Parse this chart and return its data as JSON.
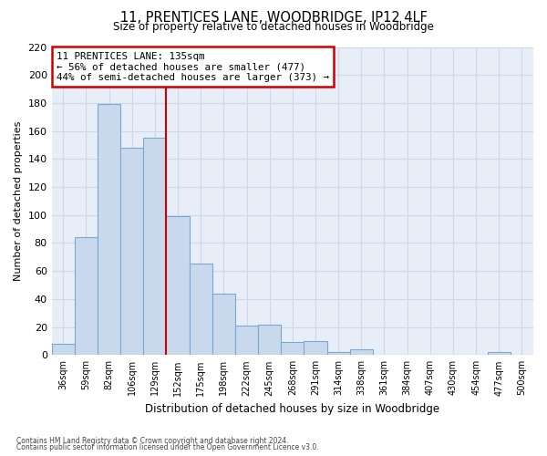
{
  "title": "11, PRENTICES LANE, WOODBRIDGE, IP12 4LF",
  "subtitle": "Size of property relative to detached houses in Woodbridge",
  "xlabel": "Distribution of detached houses by size in Woodbridge",
  "ylabel": "Number of detached properties",
  "footnote1": "Contains HM Land Registry data © Crown copyright and database right 2024.",
  "footnote2": "Contains public sector information licensed under the Open Government Licence v3.0.",
  "categories": [
    "36sqm",
    "59sqm",
    "82sqm",
    "106sqm",
    "129sqm",
    "152sqm",
    "175sqm",
    "198sqm",
    "222sqm",
    "245sqm",
    "268sqm",
    "291sqm",
    "314sqm",
    "338sqm",
    "361sqm",
    "384sqm",
    "407sqm",
    "430sqm",
    "454sqm",
    "477sqm",
    "500sqm"
  ],
  "values": [
    8,
    84,
    179,
    148,
    155,
    99,
    65,
    44,
    21,
    22,
    9,
    10,
    2,
    4,
    0,
    0,
    0,
    0,
    0,
    2,
    0
  ],
  "bar_color": "#c8d9ee",
  "bar_edge_color": "#7ba7d0",
  "grid_color": "#d0d8e8",
  "red_line_index": 5,
  "marker_label": "11 PRENTICES LANE: 135sqm",
  "annotation_line1": "← 56% of detached houses are smaller (477)",
  "annotation_line2": "44% of semi-detached houses are larger (373) →",
  "annotation_box_color": "#cc0000",
  "ylim": [
    0,
    220
  ],
  "yticks": [
    0,
    20,
    40,
    60,
    80,
    100,
    120,
    140,
    160,
    180,
    200,
    220
  ],
  "figsize": [
    6.0,
    5.0
  ],
  "dpi": 100,
  "bg_color": "#e8eef8"
}
